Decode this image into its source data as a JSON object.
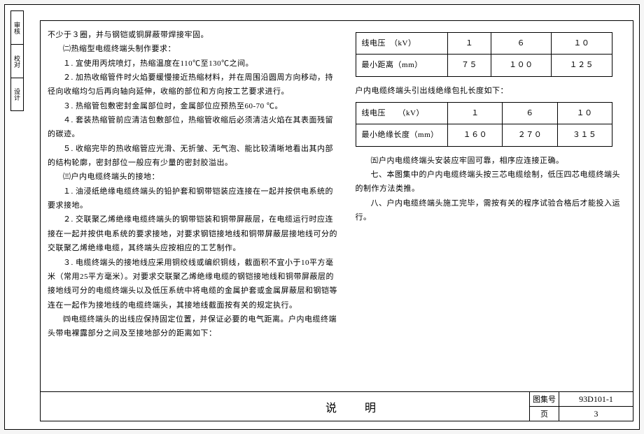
{
  "sideTabs": [
    "审核",
    "校对",
    "设计"
  ],
  "left": {
    "p1": "不少于３圈，并与钢铠或铜屏蔽带焊接牢固。",
    "p2": "㈡热缩型电缆终端头制作要求：",
    "p3": "１. 宜使用丙烷喷灯，热缩温度在110℃至130℃之间。",
    "p4": "２. 加热收缩管件时火焰要缓慢接近热缩材料，并在周围沿圆周方向移动，持径向收缩均匀后再向轴向延伸，收缩的部位和方向按工艺要求进行。",
    "p5": "３. 热缩管包敷密封金属部位时，金属部位应预热至60-70 ℃。",
    "p6": "４. 套装热缩管前应清洁包敷部位，热缩管收缩后必须清洁火焰在其表面残留的碳迹。",
    "p7": "５. 收缩完毕的热收缩管应光滑、无折皱、无气泡、能比较清晰地看出其内部的结构轮廓，密封部位一般应有少量的密封胶溢出。",
    "p8": "㈢户内电缆终端头的接地：",
    "p9": "１. 油浸纸绝缘电缆终端头的铅护套和钢带铠装应连接在一起并按供电系统的要求接地。",
    "p10": "２. 交联聚乙烯绝缘电缆终端头的钢带铠装和铜带屏蔽层，在电缆运行时应连接在一起并按供电系统的要求接地，对要求钢铠接地线和铜带屏蔽层接地线可分的交联聚乙烯绝缘电缆，其终端头应按相应的工艺制作。",
    "p11": "３. 电缆终端头的接地线应采用铜绞线或编织铜线，截面积不宜小于10平方毫米（常用25平方毫米）。对要求交联聚乙烯绝缘电缆的钢铠接地线和铜带屏蔽层的接地线可分的电缆终端头以及低压系统中将电缆的金属护套或金属屏蔽层和钢铠等连在一起作为接地线的电缆终端头，其接地线截面按有关的规定执行。",
    "p12": "㈣电缆终端头的出线应保持固定位置，并保证必要的电气距离。户内电缆终端头带电裸露部分之间及至接地部分的距离如下："
  },
  "table1": {
    "r1label": "线电压　（kV）",
    "r1c1": "１",
    "r1c2": "６",
    "r1c3": "１０",
    "r2label": "最小距离（mm）",
    "r2c1": "７５",
    "r2c2": "１００",
    "r2c3": "１２５"
  },
  "rightP1": "户内电缆终端头引出线绝缘包扎长度如下：",
  "table2": {
    "r1label": "线电压　　（kV）",
    "r1c1": "１",
    "r1c2": "６",
    "r1c3": "１０",
    "r2label": "最小绝缘长度（mm）",
    "r2c1": "１６０",
    "r2c2": "２７０",
    "r2c3": "３１５"
  },
  "right": {
    "p2": "㈤户内电缆终端头安装应牢固可靠，相序应连接正确。",
    "p3": "七、本图集中的户内电缆终端头按三芯电缆绘制，低压四芯电缆终端头的制作方法类推。",
    "p4": "八、户内电缆终端头施工完毕，需按有关的程序试验合格后才能投入运行。"
  },
  "titleBlock": {
    "title": "说　明",
    "setLabel": "图集号",
    "setNo": "93D101-1",
    "pageLabel": "页",
    "pageNo": "3"
  }
}
